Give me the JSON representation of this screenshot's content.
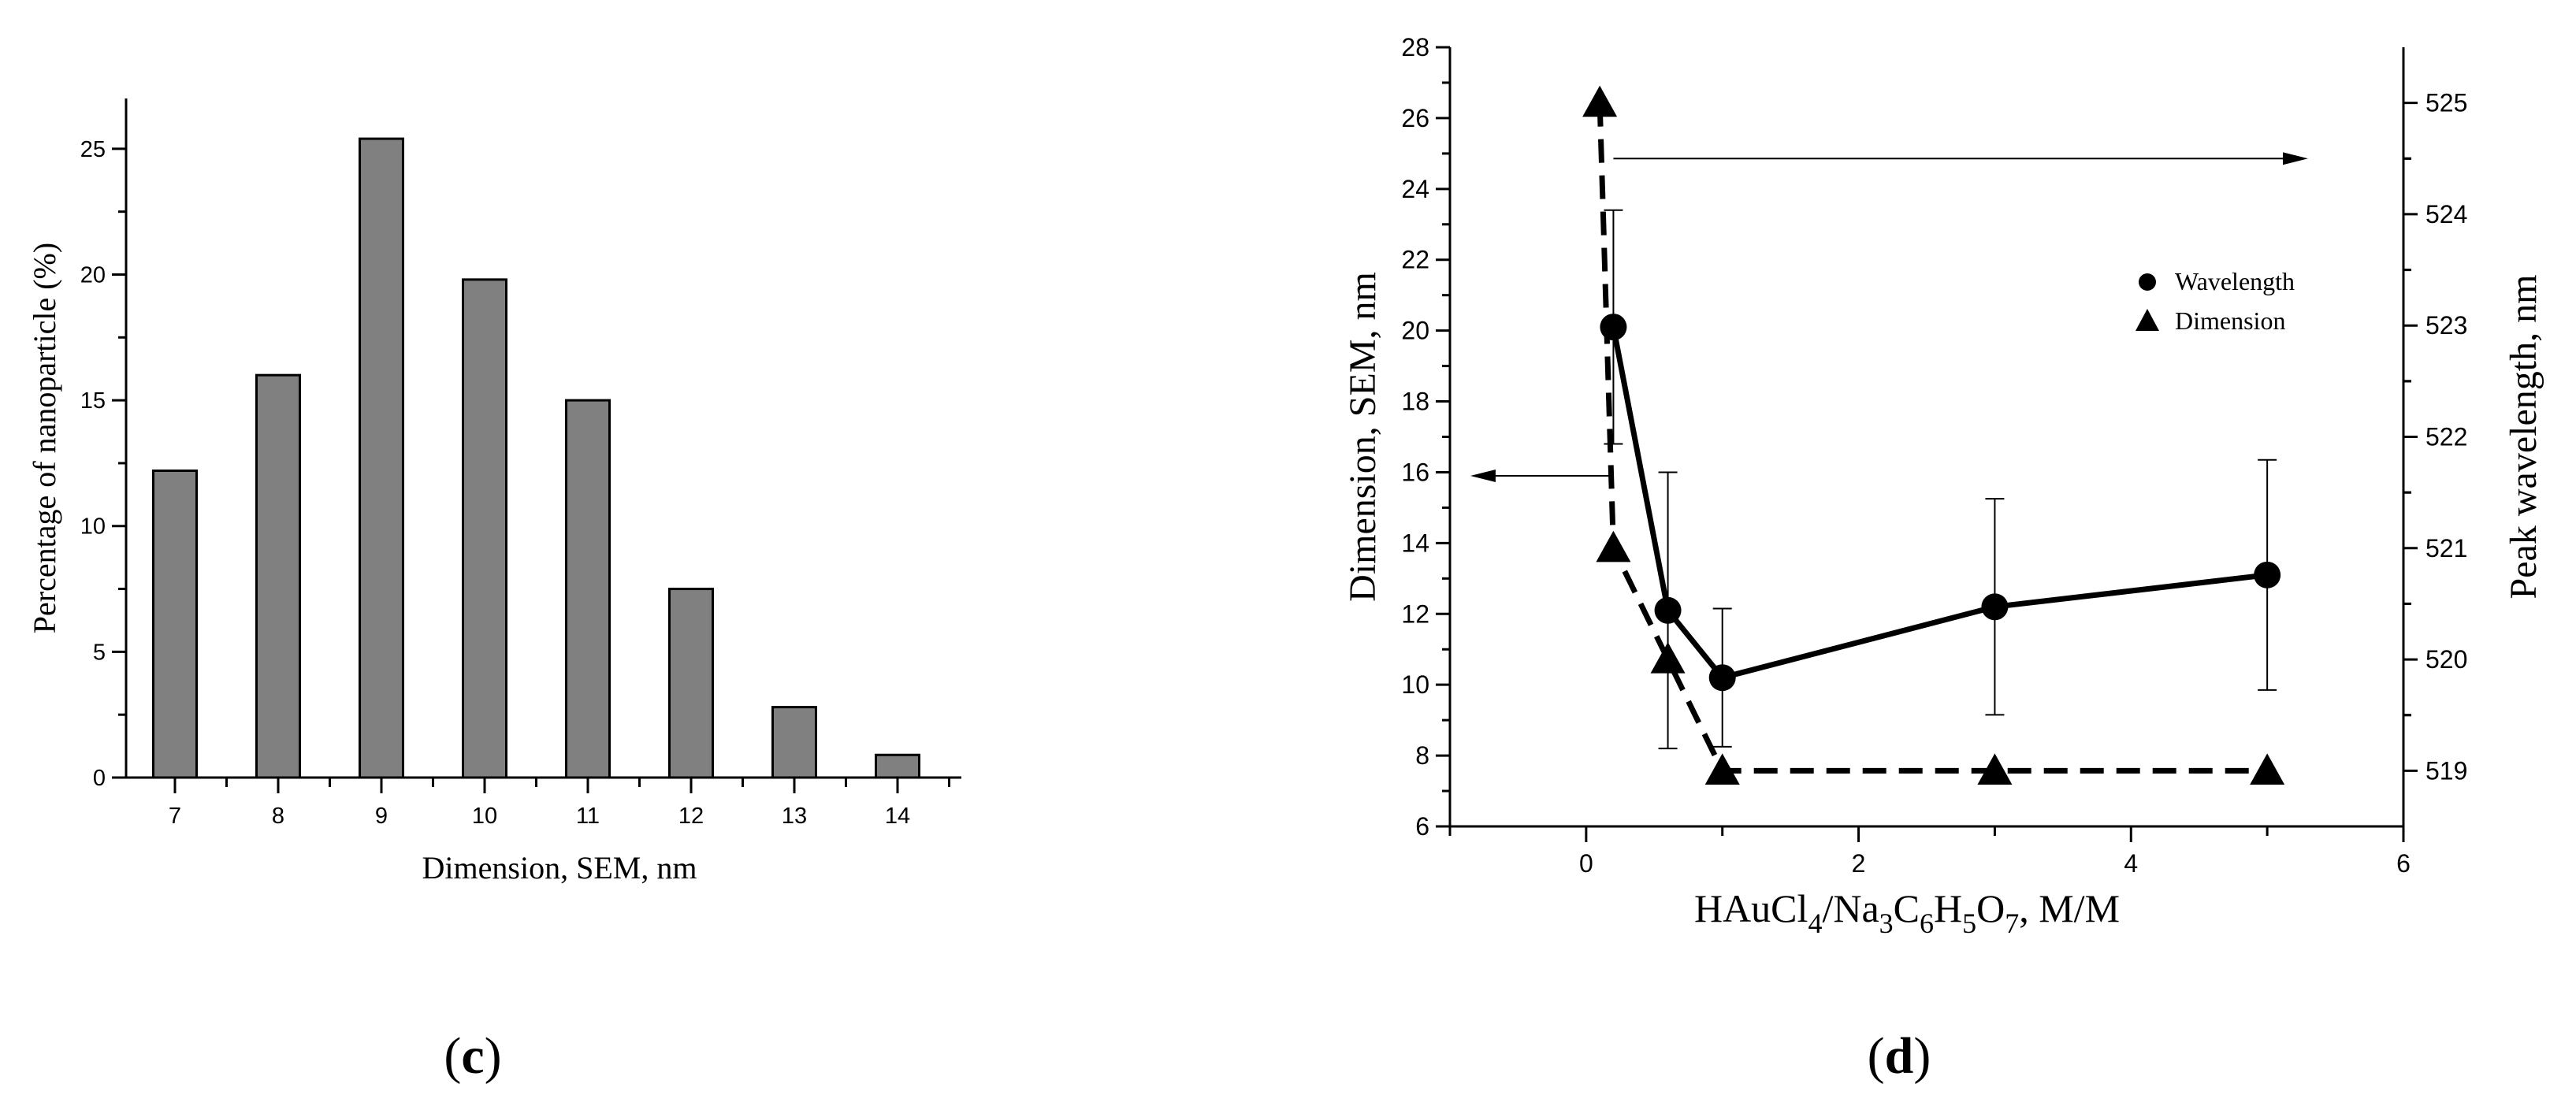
{
  "chart_data": [
    {
      "type": "bar",
      "panel_label": "c",
      "categories": [
        "7",
        "8",
        "9",
        "10",
        "11",
        "12",
        "13",
        "14"
      ],
      "values": [
        12.2,
        16.0,
        25.4,
        19.8,
        15.0,
        7.5,
        2.8,
        0.9
      ],
      "bar_color": "#808080",
      "xlabel": "Dimension, SEM, nm",
      "ylabel": "Percentage of nanoparticle (%)",
      "ylim": [
        0,
        27
      ],
      "yticks": [
        "0",
        "5",
        "10",
        "15",
        "20",
        "25"
      ]
    },
    {
      "type": "line",
      "panel_label": "d",
      "xlabel_parts": [
        "HAuCl",
        "4",
        "/Na",
        "3",
        "C",
        "6",
        "H",
        "5",
        "O",
        "7",
        ", M/M"
      ],
      "ylabel_left": "Dimension, SEM, nm",
      "ylabel_right": "Peak wavelength, nm",
      "xlim": [
        -1,
        6
      ],
      "xticks": [
        "0",
        "2",
        "4",
        "6"
      ],
      "ylim_left": [
        6,
        28
      ],
      "yticks_left": [
        "6",
        "8",
        "10",
        "12",
        "14",
        "16",
        "18",
        "20",
        "22",
        "24",
        "26",
        "28"
      ],
      "ylim_right": [
        518.5,
        525.5
      ],
      "yticks_right": [
        "519",
        "520",
        "521",
        "522",
        "523",
        "524",
        "525"
      ],
      "series": [
        {
          "name": "Wavelength",
          "marker": "circle",
          "style": "solid",
          "axis": "left",
          "x": [
            0.2,
            0.6,
            1.0,
            3.0,
            5.0
          ],
          "y": [
            20.1,
            12.1,
            10.2,
            12.2,
            13.1
          ],
          "err": [
            3.3,
            3.9,
            1.95,
            3.05,
            3.25
          ]
        },
        {
          "name": "Dimension",
          "marker": "triangle",
          "style": "dashed",
          "axis": "right",
          "x": [
            0.1,
            0.2,
            0.6,
            1.0,
            3.0,
            5.0
          ],
          "y": [
            525.0,
            521.0,
            520.0,
            519.0,
            519.0,
            519.0
          ]
        }
      ]
    }
  ]
}
